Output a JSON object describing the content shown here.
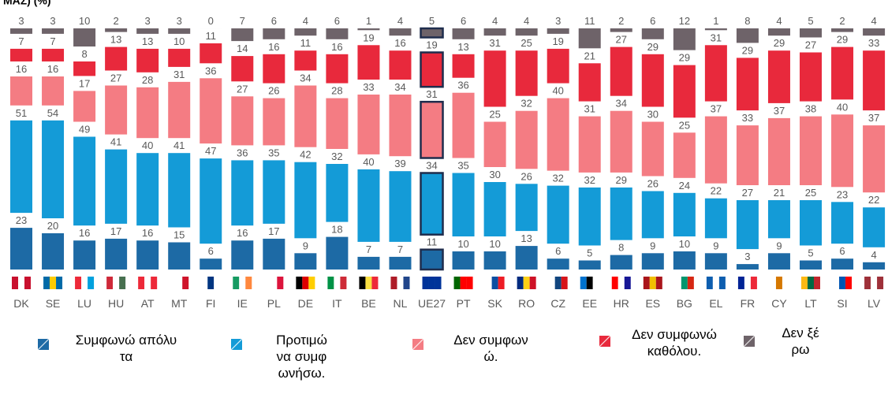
{
  "chart_data": {
    "type": "stacked-bar",
    "title": "ΜΑΣ) (%)",
    "categories": [
      "DK",
      "SE",
      "LU",
      "HU",
      "AT",
      "MT",
      "FI",
      "IE",
      "PL",
      "DE",
      "IT",
      "BE",
      "NL",
      "UE27",
      "PT",
      "SK",
      "RO",
      "CZ",
      "EE",
      "HR",
      "ES",
      "BG",
      "EL",
      "FR",
      "CY",
      "LT",
      "SI",
      "LV"
    ],
    "highlight": "UE27",
    "series": [
      {
        "name": "Συμφωνώ απόλυτα",
        "color": "#1d6aa5",
        "values": [
          23,
          20,
          16,
          17,
          16,
          15,
          6,
          16,
          17,
          9,
          18,
          7,
          7,
          11,
          10,
          10,
          13,
          6,
          5,
          8,
          9,
          10,
          9,
          3,
          9,
          5,
          6,
          4
        ]
      },
      {
        "name": "Προτιμώ να συμφωνήσω.",
        "color": "#149bd7",
        "values": [
          51,
          54,
          49,
          41,
          40,
          41,
          47,
          36,
          35,
          42,
          32,
          40,
          39,
          34,
          35,
          30,
          26,
          32,
          32,
          29,
          26,
          24,
          22,
          27,
          21,
          25,
          23,
          22
        ]
      },
      {
        "name": "Δεν συμφωνώ.",
        "color": "#f47c83",
        "values": [
          16,
          16,
          17,
          27,
          28,
          31,
          36,
          27,
          26,
          34,
          28,
          33,
          34,
          31,
          36,
          25,
          32,
          40,
          31,
          34,
          30,
          25,
          37,
          33,
          37,
          38,
          40,
          37
        ]
      },
      {
        "name": "Δεν συμφωνώ καθόλου.",
        "color": "#e8293c",
        "values": [
          7,
          7,
          8,
          13,
          13,
          10,
          11,
          14,
          16,
          11,
          16,
          19,
          16,
          19,
          13,
          31,
          25,
          19,
          21,
          27,
          29,
          29,
          31,
          29,
          29,
          27,
          29,
          33
        ]
      },
      {
        "name": "Δεν ξέρω",
        "color": "#6e6369",
        "values": [
          3,
          3,
          10,
          2,
          3,
          3,
          0,
          7,
          6,
          4,
          6,
          1,
          4,
          5,
          6,
          4,
          4,
          3,
          11,
          2,
          6,
          12,
          1,
          8,
          4,
          5,
          2,
          4
        ]
      }
    ]
  }
}
